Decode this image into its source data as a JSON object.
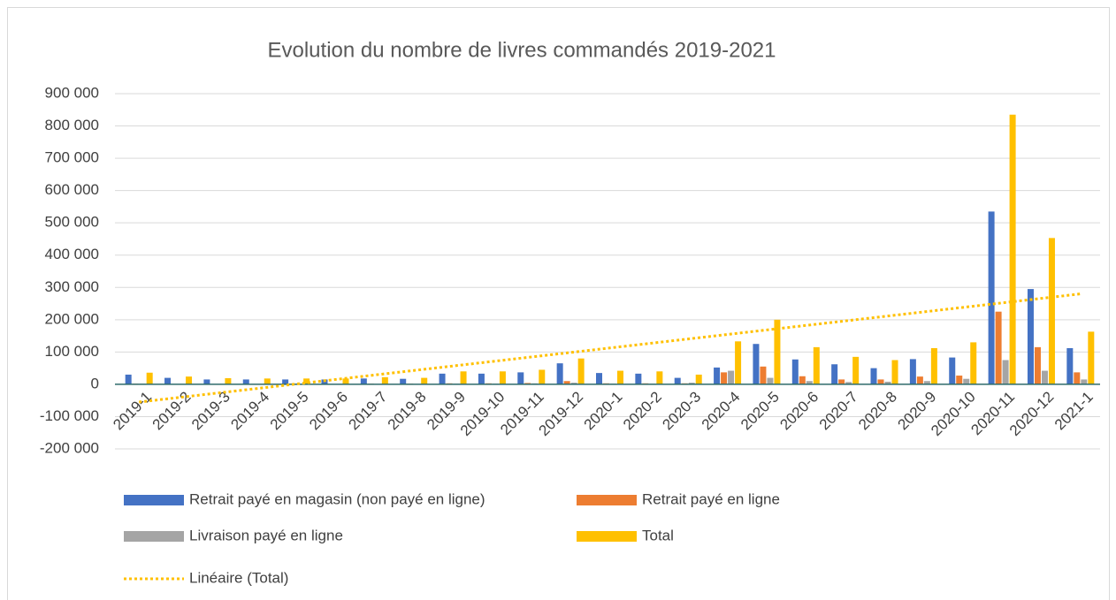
{
  "chart_data": {
    "type": "bar",
    "title": "Evolution du nombre de livres commandés 2019-2021",
    "categories": [
      "2019-1",
      "2019-2",
      "2019-3",
      "2019-4",
      "2019-5",
      "2019-6",
      "2019-7",
      "2019-8",
      "2019-9",
      "2019-10",
      "2019-11",
      "2019-12",
      "2020-1",
      "2020-2",
      "2020-3",
      "2020-4",
      "2020-5",
      "2020-6",
      "2020-7",
      "2020-8",
      "2020-9",
      "2020-10",
      "2020-11",
      "2020-12",
      "2021-1"
    ],
    "series": [
      {
        "name": "Retrait payé en magasin (non payé en ligne)",
        "color": "#4472c4",
        "values": [
          30000,
          20000,
          15000,
          15000,
          15000,
          15000,
          18000,
          17000,
          33000,
          33000,
          37000,
          65000,
          35000,
          33000,
          20000,
          52000,
          125000,
          77000,
          62000,
          50000,
          78000,
          83000,
          535000,
          295000,
          112000
        ]
      },
      {
        "name": "Retrait payé en ligne",
        "color": "#ed7d31",
        "values": [
          2000,
          1000,
          1000,
          1000,
          1000,
          1000,
          2000,
          2000,
          3000,
          3000,
          4000,
          10000,
          3000,
          3000,
          3000,
          37000,
          55000,
          25000,
          15000,
          15000,
          24000,
          27000,
          225000,
          115000,
          37000
        ]
      },
      {
        "name": "Livraison payé en ligne",
        "color": "#a5a5a5",
        "values": [
          2000,
          1000,
          1000,
          1000,
          1000,
          1000,
          1000,
          1000,
          2000,
          2000,
          3000,
          5000,
          2000,
          2000,
          5000,
          42000,
          20000,
          10000,
          7000,
          8000,
          10000,
          17000,
          75000,
          42000,
          15000
        ]
      },
      {
        "name": "Total",
        "color": "#ffc000",
        "values": [
          36000,
          24000,
          19000,
          18000,
          18000,
          18000,
          22000,
          20000,
          40000,
          40000,
          45000,
          80000,
          42000,
          40000,
          30000,
          133000,
          200000,
          115000,
          85000,
          75000,
          112000,
          130000,
          835000,
          453000,
          163000
        ]
      }
    ],
    "trendline": {
      "name": "Linéaire (Total)",
      "color": "#ffc000",
      "values": [
        -55000,
        280000
      ]
    },
    "ylim": [
      -200000,
      900000
    ],
    "yticks": [
      {
        "value": -200000,
        "label": "-200 000"
      },
      {
        "value": -100000,
        "label": "-100 000"
      },
      0,
      {
        "value": 100000,
        "label": "100 000"
      },
      {
        "value": 200000,
        "label": "200 000"
      },
      {
        "value": 300000,
        "label": "300 000"
      },
      {
        "value": 400000,
        "label": "400 000"
      },
      {
        "value": 500000,
        "label": "500 000"
      },
      {
        "value": 600000,
        "label": "600 000"
      },
      {
        "value": 700000,
        "label": "700 000"
      },
      {
        "value": 800000,
        "label": "800 000"
      },
      {
        "value": 900000,
        "label": "900 000"
      }
    ],
    "grid": true
  }
}
